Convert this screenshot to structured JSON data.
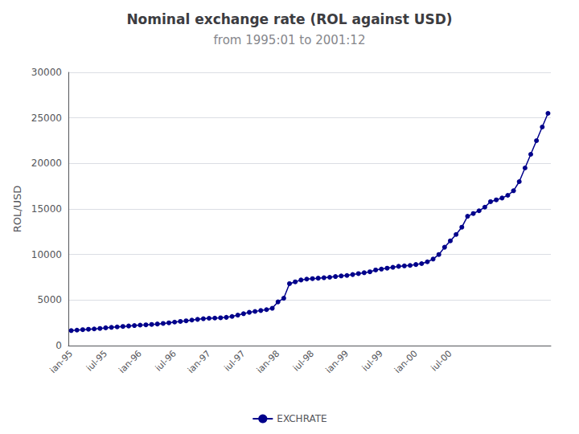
{
  "chart_data": {
    "type": "line",
    "title": "Nominal exchange rate (ROL against USD)",
    "subtitle": "from 1995:01 to 2001:12",
    "ylabel": "ROL/USD",
    "categories": [
      "ian-95",
      null,
      null,
      null,
      null,
      null,
      "iul-95",
      null,
      null,
      null,
      null,
      null,
      "ian-96",
      null,
      null,
      null,
      null,
      null,
      "iul-96",
      null,
      null,
      null,
      null,
      null,
      "ian-97",
      null,
      null,
      null,
      null,
      null,
      "iul-97",
      null,
      null,
      null,
      null,
      null,
      "ian-98",
      null,
      null,
      null,
      null,
      null,
      "iul-98",
      null,
      null,
      null,
      null,
      null,
      "ian-99",
      null,
      null,
      null,
      null,
      null,
      "iul-99",
      null,
      null,
      null,
      null,
      null,
      "ian-00",
      null,
      null,
      null,
      null,
      null,
      "iul-00",
      null,
      null,
      null,
      null,
      null,
      null,
      null,
      null,
      null,
      null,
      null,
      null,
      null,
      null,
      null,
      null,
      null
    ],
    "series": [
      {
        "name": "EXCHRATE",
        "color": "#00008B",
        "marker": "circle",
        "values": [
          1650,
          1700,
          1750,
          1790,
          1830,
          1880,
          1950,
          2000,
          2050,
          2100,
          2150,
          2200,
          2250,
          2280,
          2320,
          2370,
          2430,
          2500,
          2580,
          2650,
          2720,
          2800,
          2880,
          2950,
          3000,
          3020,
          3050,
          3100,
          3200,
          3350,
          3500,
          3650,
          3750,
          3850,
          3950,
          4100,
          4800,
          5200,
          6800,
          7000,
          7200,
          7300,
          7350,
          7400,
          7450,
          7500,
          7580,
          7650,
          7700,
          7800,
          7900,
          8000,
          8100,
          8300,
          8400,
          8500,
          8600,
          8700,
          8750,
          8800,
          8900,
          9000,
          9200,
          9500,
          10000,
          10800,
          11500,
          12200,
          13000,
          14200,
          14500,
          14800,
          15200,
          15800,
          16000,
          16200,
          16500,
          17000,
          18000,
          19500,
          21000,
          22500,
          24000,
          25500
        ]
      }
    ],
    "ylim": [
      0,
      30000
    ],
    "yticks": [
      0,
      5000,
      10000,
      15000,
      20000,
      25000,
      30000
    ],
    "grid": true,
    "legend": "bottom"
  }
}
